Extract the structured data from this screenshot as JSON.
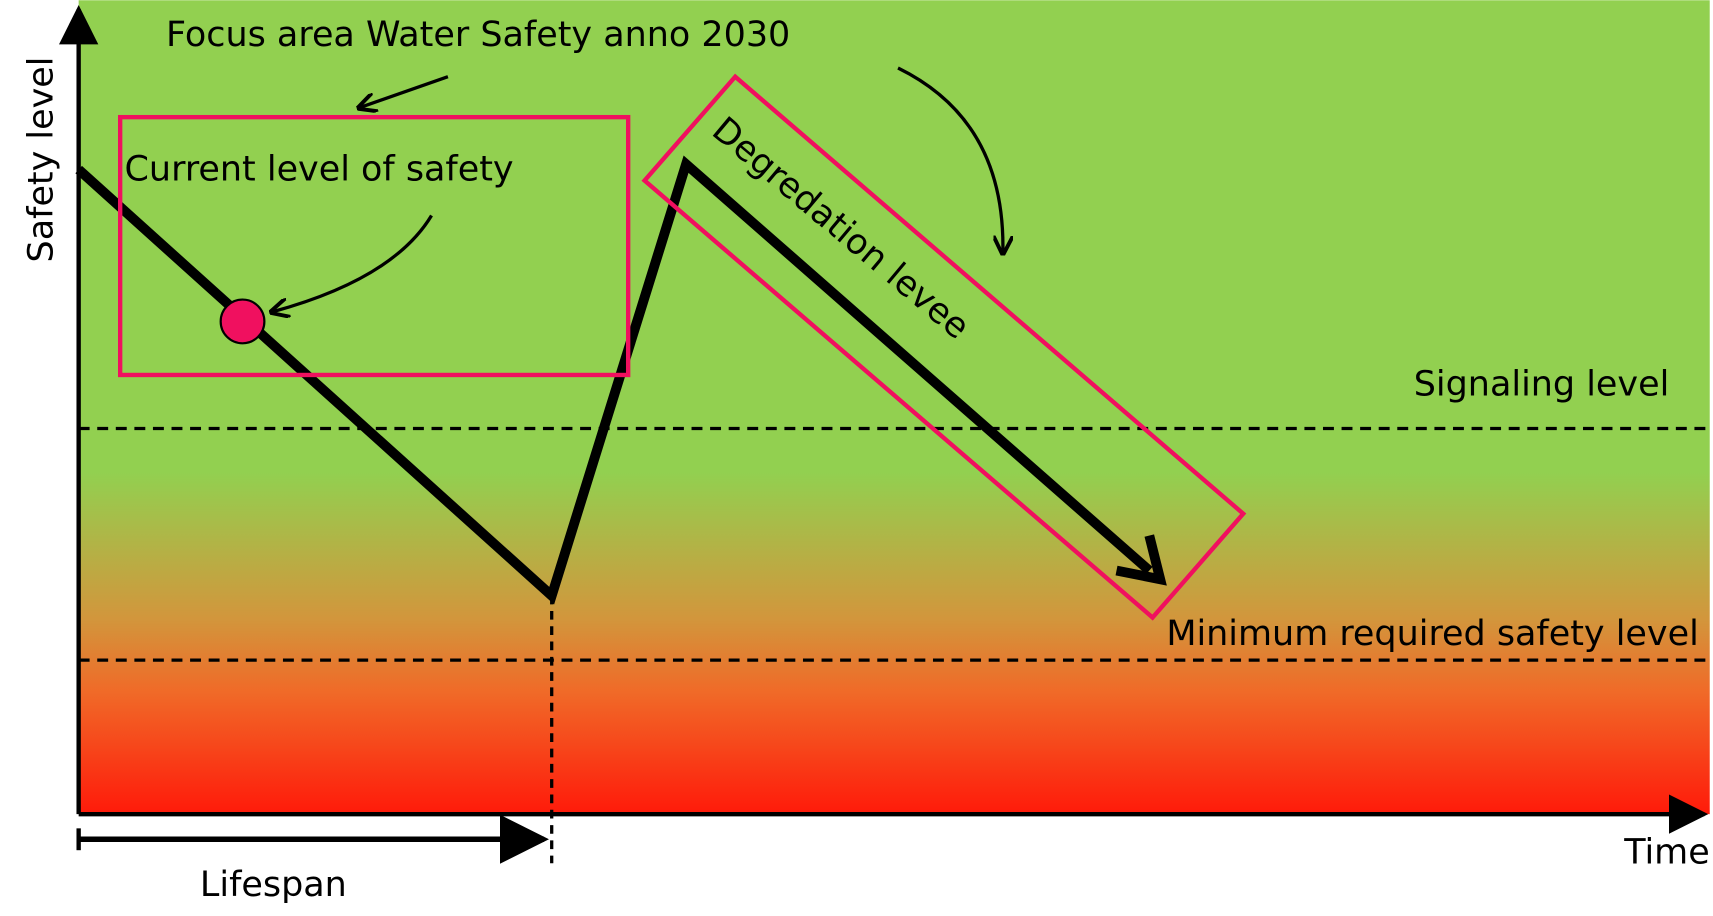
{
  "axes": {
    "y_label": "Safety level",
    "x_label": "Time"
  },
  "annotations": {
    "focus_area": "Focus area Water Safety anno 2030",
    "current_level": "Current level of safety",
    "degradation": "Degredation levee",
    "signaling_level": "Signaling level",
    "minimum_level": "Minimum required safety level",
    "lifespan": "Lifespan"
  }
}
